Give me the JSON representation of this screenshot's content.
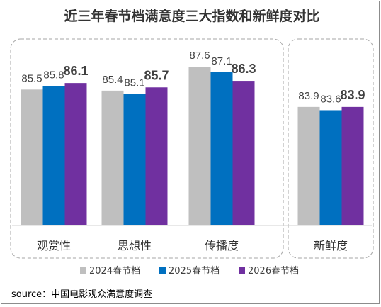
{
  "chart_data": {
    "type": "bar",
    "title": "近三年春节档满意度三大指数和新鲜度对比",
    "categories": [
      "观赏性",
      "思想性",
      "传播度",
      "新鲜度"
    ],
    "series": [
      {
        "name": "2024春节档",
        "values": [
          85.5,
          85.4,
          87.6,
          83.9
        ],
        "color": "#bfbfbf"
      },
      {
        "name": "2025春节档",
        "values": [
          85.8,
          85.1,
          87.1,
          83.6
        ],
        "color": "#0070c0"
      },
      {
        "name": "2026春节档",
        "values": [
          86.1,
          85.7,
          86.3,
          83.9
        ],
        "color": "#7030a0"
      }
    ],
    "value_labels": [
      [
        "85.5",
        "85.8",
        "86.1"
      ],
      [
        "85.4",
        "85.1",
        "85.7"
      ],
      [
        "87.6",
        "87.1",
        "86.3"
      ],
      [
        "83.9",
        "83.6",
        "83.9"
      ]
    ],
    "highlight_series": "2026春节档",
    "groups": [
      {
        "categories": [
          "观赏性",
          "思想性",
          "传播度"
        ],
        "border": "dashed"
      },
      {
        "categories": [
          "新鲜度"
        ],
        "border": "dashed"
      }
    ],
    "legend_position": "bottom",
    "grid": false,
    "y_axis_visible": false
  },
  "source": "source：中国电影观众满意度调查"
}
